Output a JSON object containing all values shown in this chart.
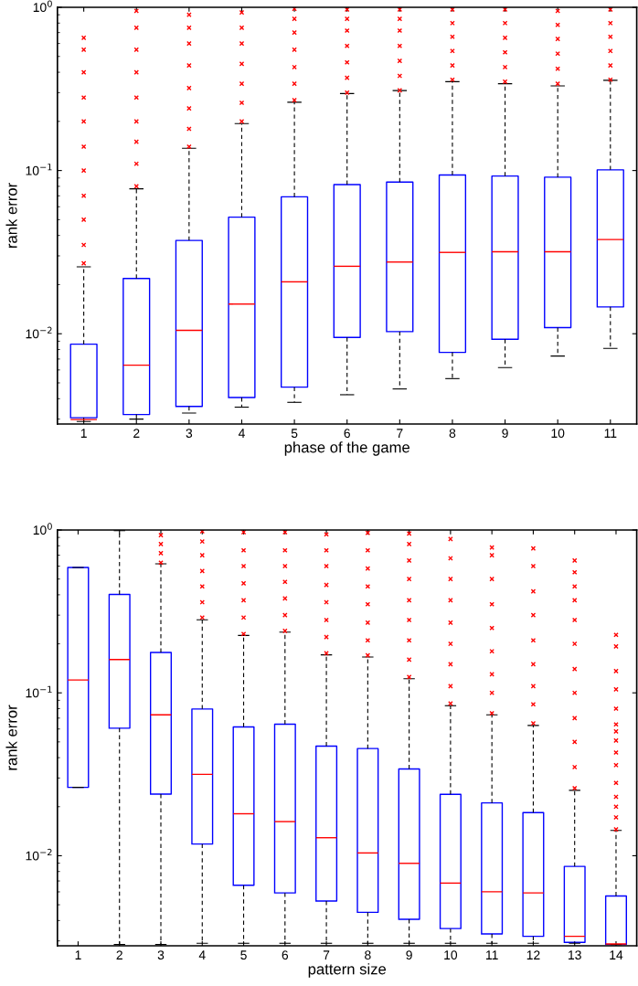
{
  "chart_data": [
    {
      "type": "box",
      "xlabel": "phase of the game",
      "ylabel": "rank error",
      "log": true,
      "color": "#0000ff",
      "marker": "cross",
      "categories": [
        "1",
        "2",
        "3",
        "4",
        "5",
        "6",
        "7",
        "8",
        "9",
        "10",
        "11"
      ],
      "ylim": [
        0.0028,
        1
      ],
      "yticks": [
        {
          "value": 0.01,
          "label": "10$^{−2}$"
        },
        {
          "value": 0.1,
          "label": "10$^{−1}$"
        },
        {
          "value": 1,
          "label": "10$^{0}$"
        }
      ],
      "boxes": [
        {
          "low": 0.0029,
          "q1": 0.00306,
          "median": 0.00298,
          "q3": 0.00863,
          "high": 0.0257,
          "outliers": [
            0.027,
            0.035,
            0.05,
            0.07,
            0.1,
            0.14,
            0.2,
            0.28,
            0.4,
            0.55,
            0.65
          ]
        },
        {
          "low": 0.003,
          "q1": 0.0032,
          "median": 0.00642,
          "q3": 0.0218,
          "high": 0.0773,
          "outliers": [
            0.08,
            0.11,
            0.15,
            0.2,
            0.28,
            0.4,
            0.55,
            0.75,
            0.95
          ]
        },
        {
          "low": 0.00327,
          "q1": 0.00359,
          "median": 0.0105,
          "q3": 0.0373,
          "high": 0.137,
          "outliers": [
            0.14,
            0.18,
            0.24,
            0.32,
            0.44,
            0.6,
            0.75,
            0.9
          ]
        },
        {
          "low": 0.00355,
          "q1": 0.00407,
          "median": 0.0152,
          "q3": 0.0518,
          "high": 0.194,
          "outliers": [
            0.2,
            0.26,
            0.34,
            0.45,
            0.6,
            0.75,
            0.93
          ]
        },
        {
          "low": 0.0038,
          "q1": 0.00471,
          "median": 0.0208,
          "q3": 0.069,
          "high": 0.262,
          "outliers": [
            0.27,
            0.34,
            0.43,
            0.55,
            0.7,
            0.85,
            0.98
          ]
        },
        {
          "low": 0.00423,
          "q1": 0.0095,
          "median": 0.0259,
          "q3": 0.082,
          "high": 0.296,
          "outliers": [
            0.3,
            0.37,
            0.46,
            0.58,
            0.72,
            0.85,
            0.97
          ]
        },
        {
          "low": 0.00459,
          "q1": 0.0103,
          "median": 0.0275,
          "q3": 0.0849,
          "high": 0.309,
          "outliers": [
            0.31,
            0.38,
            0.47,
            0.58,
            0.72,
            0.85,
            0.97
          ]
        },
        {
          "low": 0.00531,
          "q1": 0.00769,
          "median": 0.0315,
          "q3": 0.0938,
          "high": 0.35,
          "outliers": [
            0.36,
            0.44,
            0.54,
            0.66,
            0.8,
            0.97
          ]
        },
        {
          "low": 0.0062,
          "q1": 0.00925,
          "median": 0.0318,
          "q3": 0.0925,
          "high": 0.34,
          "outliers": [
            0.35,
            0.43,
            0.53,
            0.65,
            0.8,
            0.97
          ]
        },
        {
          "low": 0.0073,
          "q1": 0.0109,
          "median": 0.0318,
          "q3": 0.091,
          "high": 0.33,
          "outliers": [
            0.34,
            0.42,
            0.52,
            0.64,
            0.78,
            0.95
          ]
        },
        {
          "low": 0.00813,
          "q1": 0.0146,
          "median": 0.0378,
          "q3": 0.101,
          "high": 0.357,
          "outliers": [
            0.36,
            0.44,
            0.54,
            0.66,
            0.8,
            0.97
          ]
        }
      ]
    },
    {
      "type": "box",
      "xlabel": "pattern size",
      "ylabel": "rank error",
      "log": true,
      "color": "#0000ff",
      "marker": "cross",
      "categories": [
        "1",
        "2",
        "3",
        "4",
        "5",
        "6",
        "7",
        "8",
        "9",
        "10",
        "11",
        "12",
        "13",
        "14"
      ],
      "ylim": [
        0.0028,
        1
      ],
      "yticks": [
        {
          "value": 0.01,
          "label": "10$^{−2}$"
        },
        {
          "value": 0.1,
          "label": "10$^{−1}$"
        },
        {
          "value": 1,
          "label": "10$^{0}$"
        }
      ],
      "boxes": [
        {
          "low": 0.0263,
          "q1": 0.0263,
          "median": 0.12,
          "q3": 0.589,
          "high": 0.589
        },
        {
          "low": 0.00285,
          "q1": 0.0607,
          "median": 0.16,
          "q3": 0.402,
          "high": 0.99
        },
        {
          "low": 0.00285,
          "q1": 0.0239,
          "median": 0.0733,
          "q3": 0.177,
          "high": 0.62,
          "outliers": [
            0.63,
            0.72,
            0.82,
            0.93
          ]
        },
        {
          "low": 0.0029,
          "q1": 0.0118,
          "median": 0.0316,
          "q3": 0.0796,
          "high": 0.281,
          "outliers": [
            0.29,
            0.36,
            0.45,
            0.56,
            0.7,
            0.85,
            0.98
          ]
        },
        {
          "low": 0.0029,
          "q1": 0.00659,
          "median": 0.0181,
          "q3": 0.0618,
          "high": 0.225,
          "outliers": [
            0.23,
            0.29,
            0.37,
            0.47,
            0.6,
            0.75,
            0.97
          ]
        },
        {
          "low": 0.0029,
          "q1": 0.00591,
          "median": 0.0162,
          "q3": 0.0642,
          "high": 0.236,
          "outliers": [
            0.24,
            0.3,
            0.38,
            0.48,
            0.6,
            0.75,
            0.97
          ]
        },
        {
          "low": 0.0029,
          "q1": 0.00527,
          "median": 0.0129,
          "q3": 0.0471,
          "high": 0.171,
          "outliers": [
            0.175,
            0.22,
            0.28,
            0.36,
            0.46,
            0.6,
            0.75,
            0.94
          ]
        },
        {
          "low": 0.0029,
          "q1": 0.00449,
          "median": 0.0104,
          "q3": 0.0455,
          "high": 0.166,
          "outliers": [
            0.17,
            0.21,
            0.27,
            0.35,
            0.45,
            0.58,
            0.75,
            0.96
          ]
        },
        {
          "low": 0.0029,
          "q1": 0.00407,
          "median": 0.00898,
          "q3": 0.0341,
          "high": 0.122,
          "outliers": [
            0.125,
            0.16,
            0.21,
            0.28,
            0.37,
            0.5,
            0.65,
            0.82,
            0.95
          ]
        },
        {
          "low": 0.0029,
          "q1": 0.00357,
          "median": 0.00679,
          "q3": 0.0238,
          "high": 0.0834,
          "outliers": [
            0.086,
            0.11,
            0.15,
            0.2,
            0.27,
            0.37,
            0.5,
            0.67,
            0.88
          ]
        },
        {
          "low": 0.0029,
          "q1": 0.00331,
          "median": 0.00601,
          "q3": 0.0211,
          "high": 0.0733,
          "outliers": [
            0.075,
            0.1,
            0.13,
            0.18,
            0.25,
            0.35,
            0.5,
            0.7,
            0.78
          ]
        },
        {
          "low": 0.0029,
          "q1": 0.0032,
          "median": 0.00591,
          "q3": 0.0184,
          "high": 0.0631,
          "outliers": [
            0.065,
            0.085,
            0.11,
            0.15,
            0.21,
            0.3,
            0.42,
            0.6,
            0.77
          ]
        },
        {
          "low": 0.0029,
          "q1": 0.00294,
          "median": 0.0032,
          "q3": 0.0086,
          "high": 0.0252,
          "outliers": [
            0.026,
            0.035,
            0.05,
            0.07,
            0.1,
            0.14,
            0.2,
            0.28,
            0.37,
            0.45,
            0.55,
            0.65
          ]
        },
        {
          "low": 0.00285,
          "q1": 0.00285,
          "median": 0.00287,
          "q3": 0.00566,
          "high": 0.0143,
          "outliers": [
            0.0145,
            0.0172,
            0.02,
            0.023,
            0.028,
            0.036,
            0.043,
            0.051,
            0.058,
            0.064,
            0.08,
            0.105,
            0.136,
            0.193,
            0.227
          ]
        }
      ]
    }
  ]
}
